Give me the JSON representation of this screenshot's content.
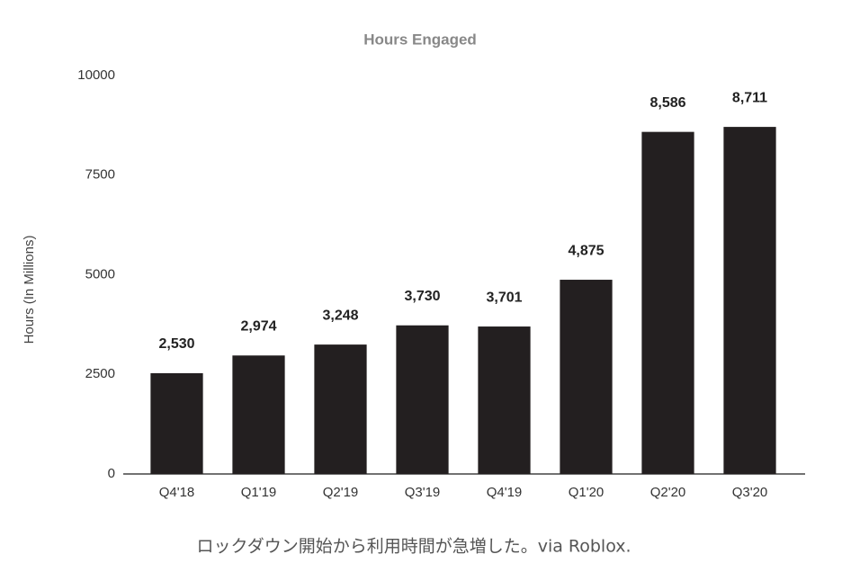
{
  "chart_data": {
    "type": "bar",
    "title": "Hours Engaged",
    "y_label": "Hours (In Millions)",
    "categories": [
      "Q4'18",
      "Q1'19",
      "Q2'19",
      "Q3'19",
      "Q4'19",
      "Q1'20",
      "Q2'20",
      "Q3'20"
    ],
    "values": [
      2530,
      2974,
      3248,
      3730,
      3701,
      4875,
      8586,
      8711
    ],
    "value_labels": [
      "2,530",
      "2,974",
      "3,248",
      "3,730",
      "3,701",
      "4,875",
      "8,586",
      "8,711"
    ],
    "color": "#231f20",
    "ylim": [
      0,
      10000
    ],
    "yticks": [
      0,
      2500,
      5000,
      7500,
      10000
    ]
  },
  "caption": "ロックダウン開始から利用時間が急増した。via Roblox."
}
